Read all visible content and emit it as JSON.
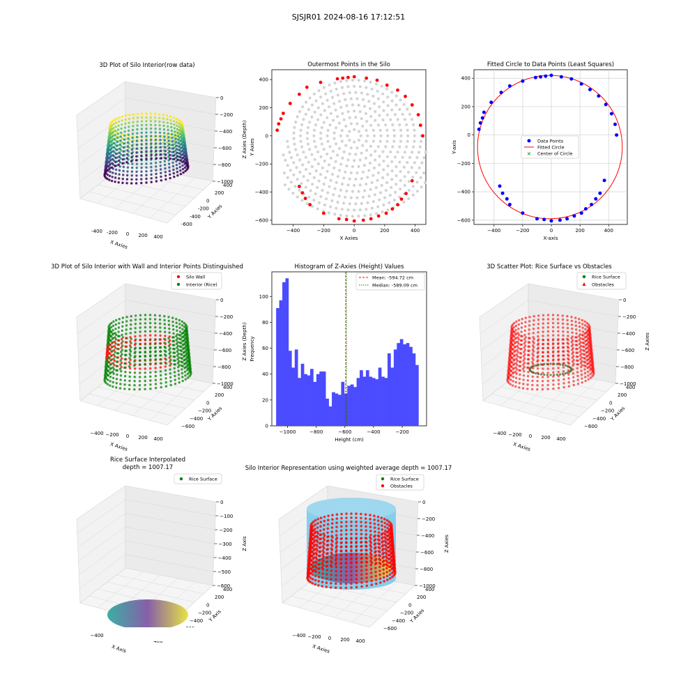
{
  "suptitle": "SJSJR01 2024-08-16 17:12:51",
  "colors": {
    "wall": "#ff0000",
    "rice": "#008000",
    "data_points": "#0000ff",
    "gray_points": "#d3d3d3",
    "hist_bar": "#4b4bff",
    "cylinder": "#87ceeb"
  },
  "panels": {
    "p1": {
      "type": "3d-scatter",
      "title": "3D Plot of Silo Interior(row data)",
      "xlabel": "X Axies",
      "ylabel": "Y Axies",
      "zlabel": "Z Axies (Depth)",
      "xticks": [
        "-400",
        "-200",
        "0",
        "200",
        "400"
      ],
      "yticks": [
        "400",
        "200",
        "0",
        "-200",
        "-400",
        "-600"
      ],
      "zticks": [
        "0",
        "−200",
        "−400",
        "−600",
        "−800",
        "−1000"
      ],
      "colormap": "viridis"
    },
    "p2": {
      "type": "scatter",
      "title": "Outermost Points in the Silo",
      "xlabel": "X Axies",
      "ylabel": "Y Axies",
      "xticks": [
        "−400",
        "−200",
        "0",
        "200",
        "400"
      ],
      "yticks": [
        "400",
        "200",
        "0",
        "−200",
        "−400",
        "−600"
      ],
      "xlim": [
        -540,
        470
      ],
      "ylim": [
        -630,
        470
      ]
    },
    "p3": {
      "type": "scatter",
      "title": "Fitted Circle to Data Points (Least Squares)",
      "xlabel": "X-axis",
      "ylabel": "Y-axis",
      "xticks": [
        "−400",
        "−200",
        "0",
        "200",
        "400"
      ],
      "yticks": [
        "400",
        "200",
        "0",
        "−200",
        "−400",
        "−600"
      ],
      "xlim": [
        -540,
        530
      ],
      "ylim": [
        -630,
        460
      ],
      "legend": [
        "Data Points",
        "Fitted Circle",
        "Center of Circle"
      ],
      "circle": {
        "cx": -10,
        "cy": -85,
        "r": 505
      },
      "points": [
        [
          455,
          0
        ],
        [
          445,
          75
        ],
        [
          420,
          150
        ],
        [
          380,
          215
        ],
        [
          330,
          275
        ],
        [
          270,
          320
        ],
        [
          210,
          360
        ],
        [
          140,
          395
        ],
        [
          70,
          410
        ],
        [
          0,
          420
        ],
        [
          -40,
          415
        ],
        [
          -75,
          410
        ],
        [
          -110,
          405
        ],
        [
          -200,
          380
        ],
        [
          -290,
          345
        ],
        [
          -350,
          300
        ],
        [
          -420,
          230
        ],
        [
          -470,
          160
        ],
        [
          -480,
          120
        ],
        [
          -495,
          85
        ],
        [
          -505,
          40
        ],
        [
          -360,
          -360
        ],
        [
          -340,
          -410
        ],
        [
          -310,
          -450
        ],
        [
          -290,
          -490
        ],
        [
          -200,
          -550
        ],
        [
          -100,
          -590
        ],
        [
          -50,
          -595
        ],
        [
          0,
          -605
        ],
        [
          60,
          -600
        ],
        [
          110,
          -590
        ],
        [
          160,
          -570
        ],
        [
          210,
          -550
        ],
        [
          240,
          -520
        ],
        [
          280,
          -490
        ],
        [
          310,
          -450
        ],
        [
          340,
          -410
        ],
        [
          370,
          -320
        ]
      ]
    },
    "p4": {
      "type": "3d-scatter",
      "title": "3D Plot of Silo Interior with Wall and Interior Points Distinguished",
      "xlabel": "X Axies",
      "ylabel": "Y Axies",
      "zlabel": "Z Axies (Depth)",
      "xticks": [
        "−400",
        "−200",
        "0",
        "200",
        "400"
      ],
      "yticks": [
        "400",
        "200",
        "0",
        "−200",
        "−400",
        "−600"
      ],
      "zticks": [
        "0",
        "−200",
        "−400",
        "−600",
        "−800",
        "−1000"
      ],
      "legend": [
        "Silo Wall",
        "Interior (Rice)"
      ]
    },
    "p5": {
      "type": "bar",
      "title": "Histogram of Z-Axies (Height) Values",
      "xlabel": "Height (cm)",
      "ylabel": "Frequency",
      "xticks": [
        "−1000",
        "−800",
        "−600",
        "−400",
        "−200"
      ],
      "yticks": [
        "0",
        "20",
        "40",
        "60",
        "80",
        "100"
      ],
      "xlim": [
        -1110,
        -30
      ],
      "ylim": [
        0,
        119
      ],
      "mean": -594.72,
      "median": -589.09,
      "legend": [
        "Mean: -594.72 cm",
        "Median: -589.09 cm"
      ],
      "bin_start": -1080,
      "bin_width": 21.6,
      "values": [
        91,
        97,
        111,
        114,
        58,
        45,
        59,
        37,
        48,
        40,
        39,
        44,
        34,
        40,
        42,
        42,
        21,
        15,
        26,
        25,
        24,
        34,
        25,
        31,
        32,
        30,
        37,
        43,
        38,
        43,
        38,
        37,
        36,
        45,
        38,
        37,
        56,
        45,
        59,
        64,
        67,
        63,
        64,
        61,
        56,
        47
      ]
    },
    "p6": {
      "type": "3d-scatter",
      "title": "3D Scatter Plot: Rice Surface vs Obstacles",
      "xlabel": "X Axies",
      "ylabel": "Y Axies",
      "zlabel": "Z Axies",
      "xticks": [
        "−400",
        "−200",
        "0",
        "200",
        "400"
      ],
      "yticks": [
        "400",
        "200",
        "0",
        "−200",
        "−400",
        "−600"
      ],
      "zticks": [
        "0",
        "−200",
        "−400",
        "−600",
        "−800",
        "−1000"
      ],
      "legend": [
        "Rice Surface",
        "Obstacles"
      ]
    },
    "p7": {
      "type": "3d-surface",
      "title": "Rice Surface Interpolated",
      "title2": "depth = 1007.17",
      "xlabel": "X Axis",
      "ylabel": "Y Axis",
      "zlabel": "Z Axis",
      "xticks": [
        "−400",
        "−200",
        "0",
        "200",
        "400"
      ],
      "yticks": [
        "400",
        "200",
        "0",
        "−200",
        "−400",
        "−600"
      ],
      "zticks": [
        "0",
        "−100",
        "−200",
        "−300",
        "−400",
        "−500",
        "−600"
      ],
      "legend": [
        "Rice Surface"
      ]
    },
    "p8": {
      "type": "3d-scatter",
      "title": "Silo Interior Representation using weighted average depth = 1007.17",
      "xlabel": "X Axies",
      "ylabel": "Y Axies",
      "zlabel": "Z Axies",
      "xticks": [
        "−400",
        "−200",
        "0",
        "200",
        "400"
      ],
      "yticks": [
        "400",
        "200",
        "0",
        "−200",
        "−400",
        "−600"
      ],
      "zticks": [
        "0",
        "−200",
        "−400",
        "−600",
        "−800",
        "−1000"
      ],
      "legend": [
        "Rice Surface",
        "Obstacles"
      ]
    }
  }
}
